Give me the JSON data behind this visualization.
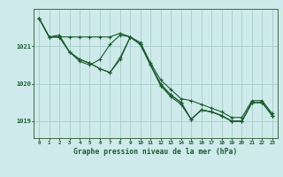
{
  "title": "Graphe pression niveau de la mer (hPa)",
  "background_color": "#ceeaea",
  "grid_color": "#aacccc",
  "line_color": "#1a5c30",
  "x_min": -0.5,
  "x_max": 23.5,
  "y_min": 1018.55,
  "y_max": 1022.0,
  "yticks": [
    1019,
    1020,
    1021
  ],
  "xticks": [
    0,
    1,
    2,
    3,
    4,
    5,
    6,
    7,
    8,
    9,
    10,
    11,
    12,
    13,
    14,
    15,
    16,
    17,
    18,
    19,
    20,
    21,
    22,
    23
  ],
  "series": [
    [
      1021.75,
      1021.25,
      1021.25,
      1021.25,
      1021.25,
      1021.25,
      1021.25,
      1021.25,
      1021.35,
      1021.25,
      1021.1,
      1020.55,
      1020.1,
      1019.85,
      1019.6,
      1019.55,
      1019.45,
      1019.35,
      1019.25,
      1019.1,
      1019.1,
      1019.55,
      1019.55,
      1019.2
    ],
    [
      1021.75,
      1021.25,
      1021.25,
      1020.85,
      1020.6,
      1020.5,
      1020.65,
      1021.05,
      1021.3,
      1021.25,
      1021.05,
      1020.5,
      1019.95,
      1019.7,
      1019.5,
      1019.05,
      1019.3,
      1019.25,
      1019.15,
      1019.0,
      1019.0,
      1019.5,
      1019.5,
      1019.15
    ],
    [
      1021.75,
      1021.25,
      1021.25,
      1020.85,
      1020.65,
      1020.55,
      1020.4,
      1020.3,
      1020.7,
      1021.25,
      1021.05,
      1020.5,
      1019.95,
      1019.65,
      1019.45,
      1019.05,
      1019.3,
      1019.25,
      1019.15,
      1019.0,
      1019.0,
      1019.5,
      1019.5,
      1019.15
    ],
    [
      1021.75,
      1021.25,
      1021.3,
      1020.85,
      1020.65,
      1020.55,
      1020.4,
      1020.3,
      1020.65,
      1021.25,
      1021.05,
      1020.5,
      1020.0,
      1019.7,
      1019.5,
      1019.05,
      1019.3,
      1019.25,
      1019.15,
      1019.0,
      1019.0,
      1019.5,
      1019.5,
      1019.15
    ]
  ]
}
